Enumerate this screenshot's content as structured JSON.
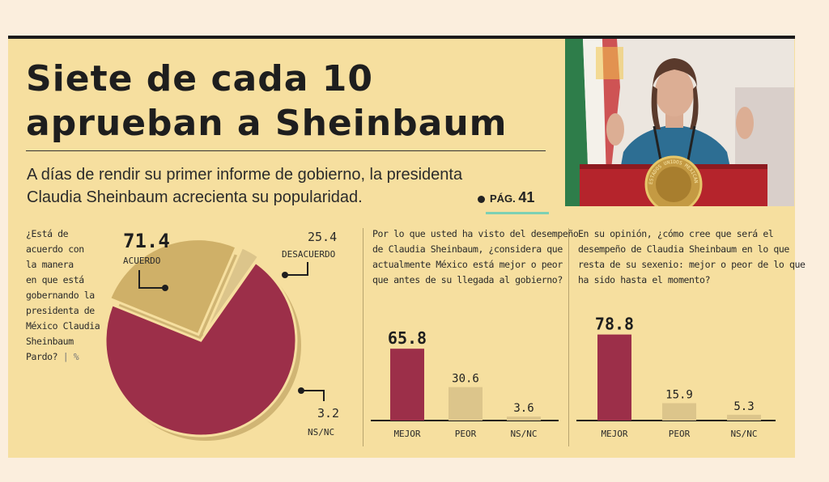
{
  "headline": {
    "line1": "Siete de cada 10",
    "line2": "aprueban a Sheinbaum"
  },
  "subtitle": {
    "line1": "A días de rendir su primer informe de gobierno, la presidenta",
    "line2": "Claudia Sheinbaum acrecienta su popularidad."
  },
  "page_ref": {
    "prefix": "PÁG.",
    "number": "41"
  },
  "photo": {
    "podium_seal_text": "ESTADOS UNIDOS MEXICANOS"
  },
  "questions": {
    "q1": [
      "¿Está de",
      "acuerdo con",
      "la manera",
      "en que está",
      "gobernando la",
      "presidenta de",
      "México Claudia",
      "Sheinbaum"
    ],
    "q1_last": "Pardo?",
    "q1_unit": "%",
    "q2": [
      "Por lo que usted ha visto del desempeño",
      "de Claudia Sheinbaum, ¿considera que",
      "actualmente México está mejor o peor",
      "que antes de su llegada al gobierno?"
    ],
    "q3": [
      "En su opinión, ¿cómo cree que será el",
      "desempeño de Claudia Sheinbaum en lo que",
      "resta de su sexenio: mejor o peor de lo que",
      "ha sido hasta el momento?"
    ]
  },
  "colors": {
    "primary": "#9c2f49",
    "secondary": "#cfb068",
    "neutral": "#dcc58b",
    "background": "#f6df9f"
  },
  "chart_data": [
    {
      "type": "pie",
      "categories": [
        "ACUERDO",
        "DESACUERDO",
        "NS/NC"
      ],
      "values": [
        71.4,
        25.4,
        3.2
      ],
      "value_labels": [
        "71.4",
        "25.4",
        "3.2"
      ]
    },
    {
      "type": "bar",
      "categories": [
        "MEJOR",
        "PEOR",
        "NS/NC"
      ],
      "values": [
        65.8,
        30.6,
        3.6
      ],
      "value_labels": [
        "65.8",
        "30.6",
        "3.6"
      ]
    },
    {
      "type": "bar",
      "categories": [
        "MEJOR",
        "PEOR",
        "NS/NC"
      ],
      "values": [
        78.8,
        15.9,
        5.3
      ],
      "value_labels": [
        "78.8",
        "15.9",
        "5.3"
      ]
    }
  ]
}
